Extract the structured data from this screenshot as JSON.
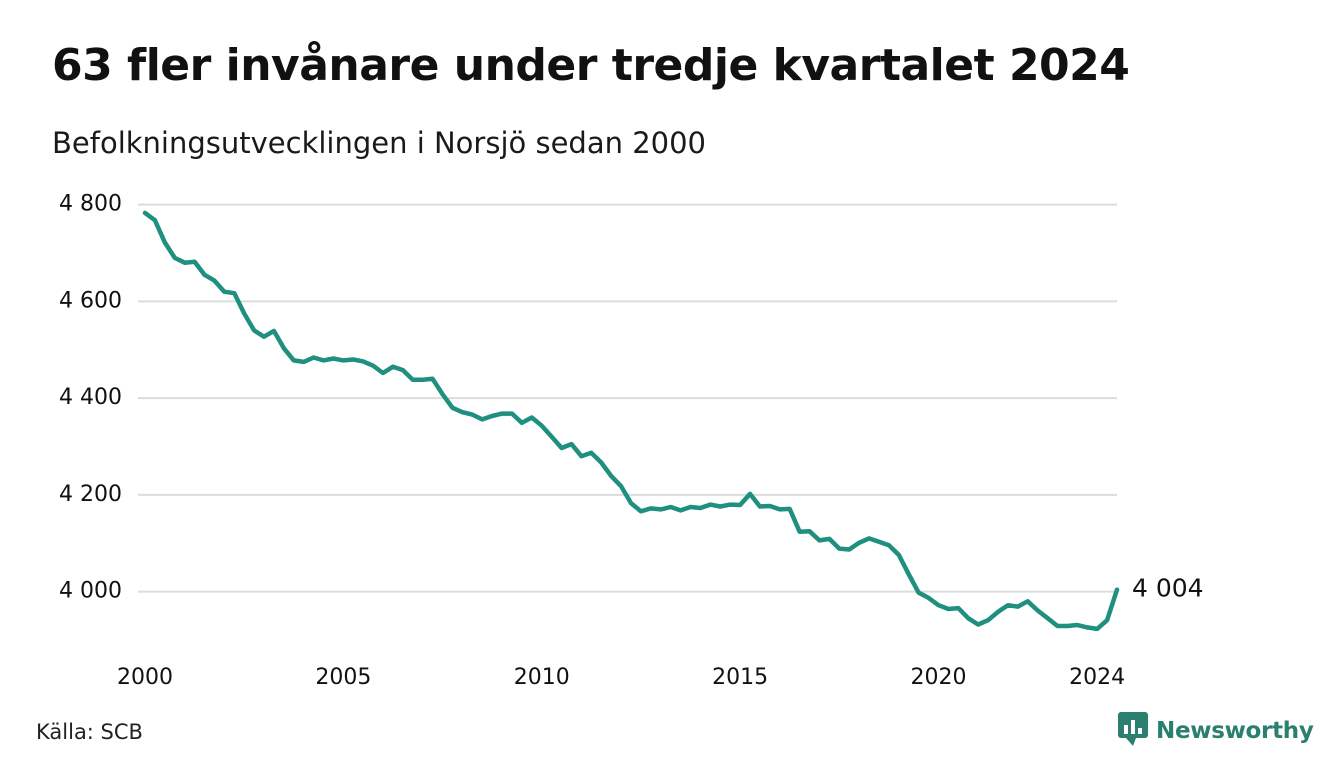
{
  "title": "63 fler invånare under tredje kvartalet 2024",
  "subtitle": "Befolkningsutvecklingen i Norsjö sedan 2000",
  "source": "Källa: SCB",
  "brand": {
    "name": "Newsworthy",
    "icon": "newsworthy-logo-icon"
  },
  "colors": {
    "line": "#1f8f7f",
    "grid": "#dcdcdc",
    "brand": "#2a7f6f",
    "text": "#111111"
  },
  "chart_data": {
    "type": "line",
    "title": "63 fler invånare under tredje kvartalet 2024",
    "subtitle": "Befolkningsutvecklingen i Norsjö sedan 2000",
    "xlabel": "",
    "ylabel": "",
    "x_tick_labels": [
      "2000",
      "2005",
      "2010",
      "2015",
      "2020",
      "2024"
    ],
    "x_ticks": [
      2000,
      2005,
      2010,
      2015,
      2020,
      2024
    ],
    "y_tick_labels": [
      "4 000",
      "4 200",
      "4 400",
      "4 600",
      "4 800"
    ],
    "y_ticks": [
      4000,
      4200,
      4400,
      4600,
      4800
    ],
    "xlim": [
      2000,
      2024.5
    ],
    "ylim": [
      3900,
      4820
    ],
    "grid": true,
    "legend": "none",
    "end_label": "4 004",
    "series": [
      {
        "x": [
          2000.0,
          2000.25,
          2000.5,
          2000.75,
          2001.0,
          2001.25,
          2001.5,
          2001.75,
          2002.0,
          2002.25,
          2002.5,
          2002.75,
          2003.0,
          2003.25,
          2003.5,
          2003.75,
          2004.0,
          2004.25,
          2004.5,
          2004.75,
          2005.0,
          2005.25,
          2005.5,
          2005.75,
          2006.0,
          2006.25,
          2006.5,
          2006.75,
          2007.0,
          2007.25,
          2007.5,
          2007.75,
          2008.0,
          2008.25,
          2008.5,
          2008.75,
          2009.0,
          2009.25,
          2009.5,
          2009.75,
          2010.0,
          2010.25,
          2010.5,
          2010.75,
          2011.0,
          2011.25,
          2011.5,
          2011.75,
          2012.0,
          2012.25,
          2012.5,
          2012.75,
          2013.0,
          2013.25,
          2013.5,
          2013.75,
          2014.0,
          2014.25,
          2014.5,
          2014.75,
          2015.0,
          2015.25,
          2015.5,
          2015.75,
          2016.0,
          2016.25,
          2016.5,
          2016.75,
          2017.0,
          2017.25,
          2017.5,
          2017.75,
          2018.0,
          2018.25,
          2018.5,
          2018.75,
          2019.0,
          2019.25,
          2019.5,
          2019.75,
          2020.0,
          2020.25,
          2020.5,
          2020.75,
          2021.0,
          2021.25,
          2021.5,
          2021.75,
          2022.0,
          2022.25,
          2022.5,
          2022.75,
          2023.0,
          2023.25,
          2023.5,
          2023.75,
          2024.0,
          2024.25,
          2024.5
        ],
        "y": [
          4783,
          4768,
          4722,
          4690,
          4680,
          4682,
          4655,
          4643,
          4620,
          4617,
          4575,
          4540,
          4527,
          4539,
          4503,
          4478,
          4475,
          4484,
          4478,
          4482,
          4478,
          4480,
          4476,
          4467,
          4452,
          4465,
          4458,
          4438,
          4438,
          4440,
          4408,
          4380,
          4371,
          4366,
          4356,
          4363,
          4368,
          4368,
          4349,
          4360,
          4343,
          4320,
          4297,
          4305,
          4280,
          4287,
          4267,
          4239,
          4218,
          4183,
          4166,
          4172,
          4170,
          4175,
          4168,
          4175,
          4173,
          4180,
          4176,
          4180,
          4179,
          4202,
          4176,
          4177,
          4170,
          4171,
          4124,
          4125,
          4106,
          4109,
          4089,
          4087,
          4101,
          4110,
          4103,
          4096,
          4076,
          4036,
          3998,
          3987,
          3972,
          3964,
          3966,
          3945,
          3932,
          3941,
          3958,
          3972,
          3969,
          3980,
          3961,
          3945,
          3929,
          3929,
          3931,
          3926,
          3923,
          3941,
          4004
        ]
      }
    ]
  }
}
